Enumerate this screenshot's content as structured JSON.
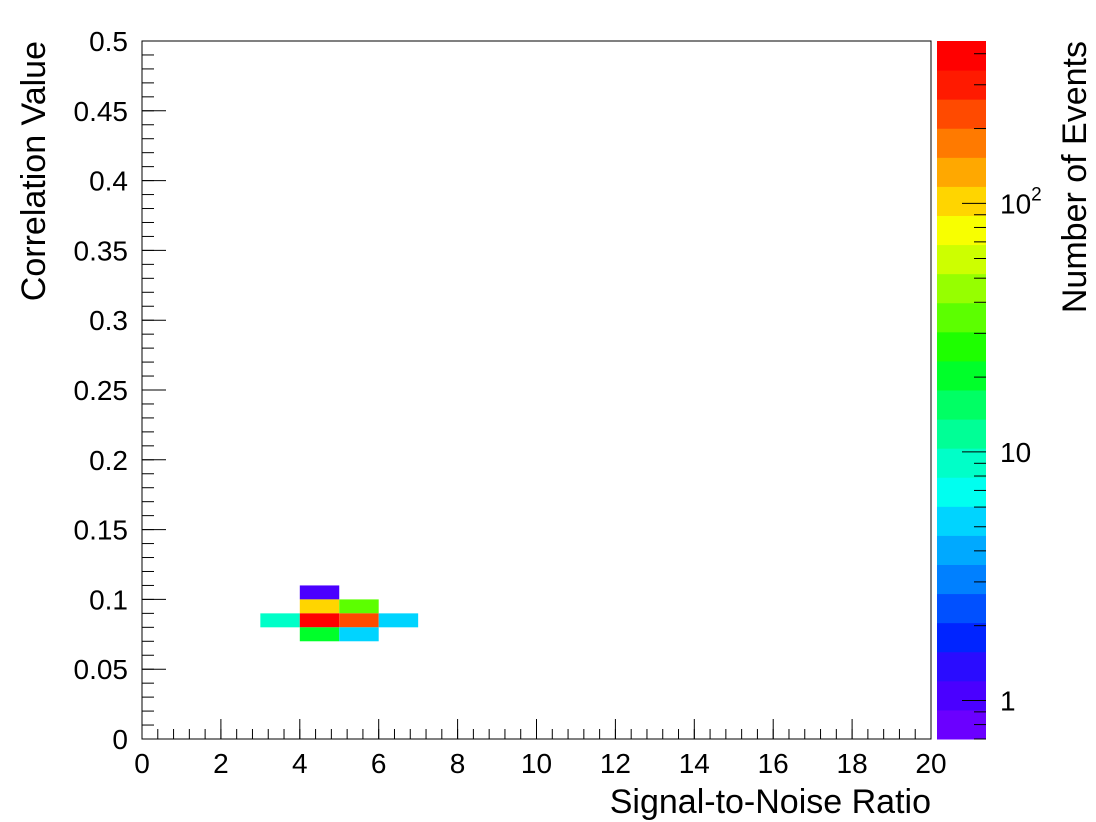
{
  "chart_data": {
    "type": "heatmap",
    "xlabel": "Signal-to-Noise Ratio",
    "ylabel": "Correlation Value",
    "zlabel": "Number of Events",
    "xlim": [
      0,
      20
    ],
    "ylim": [
      0,
      0.5
    ],
    "x_ticks": [
      "0",
      "2",
      "4",
      "6",
      "8",
      "10",
      "12",
      "14",
      "16",
      "18",
      "20"
    ],
    "y_ticks": [
      "0",
      "0.05",
      "0.1",
      "0.15",
      "0.2",
      "0.25",
      "0.3",
      "0.35",
      "0.4",
      "0.45",
      "0.5"
    ],
    "z_scale": "log",
    "zlim": [
      0.7,
      450
    ],
    "z_tick_labels": [
      {
        "value": 1,
        "base": "1",
        "exp": ""
      },
      {
        "value": 10,
        "base": "10",
        "exp": ""
      },
      {
        "value": 100,
        "base": "10",
        "exp": "2"
      }
    ],
    "bin_width_x": 1,
    "bin_width_y": 0.01,
    "bins": [
      {
        "x": 4,
        "y": 0.1,
        "count": 1
      },
      {
        "x": 4,
        "y": 0.09,
        "count": 100
      },
      {
        "x": 5,
        "y": 0.09,
        "count": 35
      },
      {
        "x": 3,
        "y": 0.08,
        "count": 10
      },
      {
        "x": 4,
        "y": 0.08,
        "count": 450
      },
      {
        "x": 5,
        "y": 0.08,
        "count": 250
      },
      {
        "x": 6,
        "y": 0.08,
        "count": 6
      },
      {
        "x": 4,
        "y": 0.07,
        "count": 20
      },
      {
        "x": 5,
        "y": 0.07,
        "count": 6
      }
    ],
    "palette": [
      "#6b00ff",
      "#4a00ff",
      "#2a0cff",
      "#0024ff",
      "#0050ff",
      "#0080ff",
      "#00a9ff",
      "#00d4ff",
      "#00fff0",
      "#00ffc8",
      "#00ff96",
      "#00ff64",
      "#00ff2a",
      "#1eff00",
      "#5cff00",
      "#96ff00",
      "#cdff00",
      "#f8ff00",
      "#ffd500",
      "#ffa800",
      "#ff7a00",
      "#ff4a00",
      "#ff1a00",
      "#ff0000"
    ],
    "grid": false,
    "legend": "colorbar-right"
  }
}
